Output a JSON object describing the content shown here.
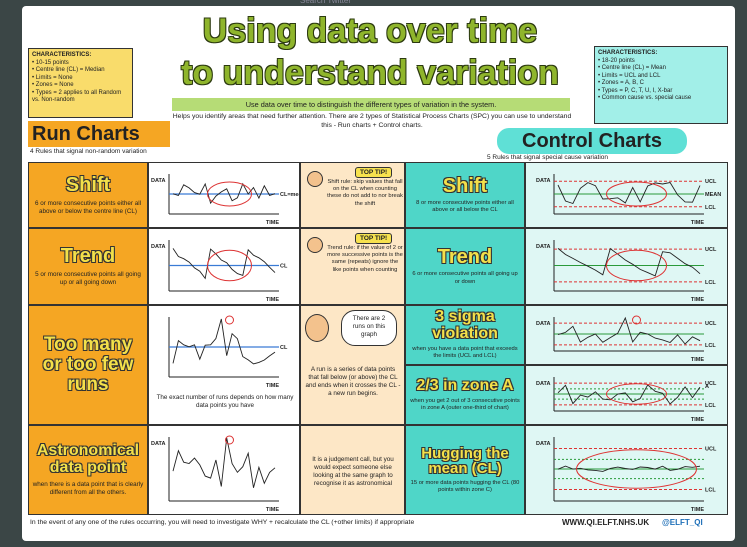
{
  "browser": {
    "search": "Search Twitter"
  },
  "header": {
    "title_line1": "Using data over time",
    "title_line2": "to understand variation",
    "banner": "Use data over time to distinguish the different types of variation in the system.",
    "intro": "Helps you identify areas that need further attention. There are 2 types of Statistical Process Charts (SPC) you can use to understand this - Run charts + Control charts."
  },
  "run_characteristics": {
    "heading": "CHARACTERISTICS:",
    "items": [
      "10-15 points",
      "Centre line (CL) = Median",
      "Limits = None",
      "Zones = None",
      "Types = 2 applies to all Random vs. Non-random"
    ]
  },
  "control_characteristics": {
    "heading": "CHARACTERISTICS:",
    "items": [
      "18-20 points",
      "Centre line (CL) = Mean",
      "Limits = UCL and LCL",
      "Zones = A, B, C",
      "Types = P, C, T, U, I, X-bar",
      "Common cause vs. special cause"
    ]
  },
  "run_charts": {
    "title": "Run Charts",
    "subtitle": "4 Rules that signal non-random variation",
    "rules": [
      {
        "name": "Shift",
        "description": "6 or more consecutive points either all above or below the centre line (CL)",
        "chart": {
          "y_axis": "DATA",
          "centre": "CL=median",
          "x_axis": "TIME"
        },
        "tip_badge": "TOP TIP!",
        "tip": "Shift rule: skip values that fall on the CL when counting these do not add to nor break the shift"
      },
      {
        "name": "Trend",
        "description": "5 or more consecutive points all going up or all going down",
        "chart": {
          "y_axis": "DATA",
          "centre": "CL",
          "x_axis": "TIME"
        },
        "tip_badge": "TOP TIP!",
        "tip": "Trend rule: if the value of 2 or more successive points is the same (repeats) ignore the like points when counting"
      },
      {
        "name": "Too many or too few runs",
        "chart": {
          "centre": "CL",
          "x_axis": "TIME"
        },
        "note": "The exact number of runs depends on how many data points you have",
        "speech": "There are 2 runs on this graph",
        "tip": "A run is a series of data points that fall below (or above) the CL and ends when it crosses the CL - a new run begins."
      },
      {
        "name": "Astronomical data point",
        "description": "when there is a data point that is clearly different from all the others.",
        "chart": {
          "y_axis": "DATA",
          "x_axis": "TIME"
        },
        "tip": "It is a judgement call, but you would expect someone else looking at the same graph to recognise it as astronomical"
      }
    ]
  },
  "control_charts": {
    "title": "Control Charts",
    "subtitle": "5 Rules that signal special cause variation",
    "rules": [
      {
        "name": "Shift",
        "description": "8 or more consecutive points either all above or all below the CL",
        "chart": {
          "upper": "UCL",
          "centre": "MEAN",
          "lower": "LCL",
          "y_axis": "DATA",
          "x_axis": "TIME"
        }
      },
      {
        "name": "Trend",
        "description": "6 or more consecutive points all going up or down",
        "chart": {
          "upper": "UCL",
          "y_axis": "DATA",
          "lower": "LCL",
          "x_axis": "TIME"
        }
      },
      {
        "name": "3 sigma violation",
        "description": "when you have a data point that exceeds the limits (UCL and LCL)",
        "chart": {
          "upper": "UCL",
          "y_axis": "DATA",
          "lower": "LCL",
          "x_axis": "TIME"
        }
      },
      {
        "name": "2/3 in zone A",
        "description": "when you get 2 out of 3 consecutive points in zone A (outer one-third of chart)",
        "chart": {
          "zone": "A",
          "upper": "UCL",
          "y_axis": "DATA",
          "lower": "LCL",
          "x_axis": "TIME"
        }
      },
      {
        "name": "Hugging the mean (CL)",
        "description": "15 or more data points hugging the CL (80 points within zone C)",
        "chart": {
          "upper": "UCL",
          "y_axis": "DATA",
          "lower": "LCL",
          "x_axis": "TIME"
        }
      }
    ]
  },
  "footer": {
    "text": "In the event of any one of the rules occurring, you will need to investigate WHY + recalculate the CL (+other limits) if appropriate",
    "website": "WWW.QI.ELFT.NHS.UK",
    "twitter": "@ELFT_QI"
  }
}
